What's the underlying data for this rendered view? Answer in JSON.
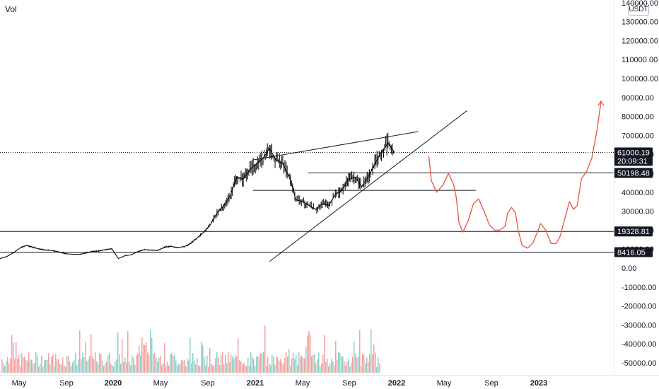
{
  "header": {
    "vol_label": "Vol",
    "currency": "USDT"
  },
  "colors": {
    "candle": "#000000",
    "drawing_line": "#131722",
    "projection": "#e8533f",
    "vol_up": "#8fd0c7",
    "vol_down": "#f3a3a0",
    "price_line": "#131722"
  },
  "chart_data": {
    "type": "candlestick",
    "price_axis": {
      "ticks": [
        "140000.00",
        "130000.00",
        "120000.00",
        "110000.00",
        "100000.00",
        "90000.00",
        "80000.00",
        "70000.00",
        "60000.00",
        "50000.00",
        "40000.00",
        "30000.00",
        "20000.00",
        "10000.00",
        "0.00",
        "-10000.00",
        "-20000.00",
        "-30000.00",
        "-40000.00",
        "-50000.00"
      ],
      "ylim": [
        -55000,
        140000
      ]
    },
    "time_axis": {
      "ticks": [
        {
          "label": "May",
          "bold": false
        },
        {
          "label": "Sep",
          "bold": false
        },
        {
          "label": "2020",
          "bold": true
        },
        {
          "label": "May",
          "bold": false
        },
        {
          "label": "Sep",
          "bold": false
        },
        {
          "label": "2021",
          "bold": true
        },
        {
          "label": "May",
          "bold": false
        },
        {
          "label": "Sep",
          "bold": false
        },
        {
          "label": "2022",
          "bold": true
        },
        {
          "label": "May",
          "bold": false
        },
        {
          "label": "Sep",
          "bold": false
        },
        {
          "label": "2023",
          "bold": true
        }
      ]
    },
    "series": [
      {
        "name": "price",
        "points": [
          [
            0,
            5000
          ],
          [
            0.5,
            6000
          ],
          [
            1,
            8000
          ],
          [
            1.5,
            10500
          ],
          [
            2,
            12000
          ],
          [
            2.5,
            11000
          ],
          [
            3,
            10000
          ],
          [
            3.5,
            9500
          ],
          [
            4,
            9200
          ],
          [
            4.5,
            8500
          ],
          [
            5,
            7500
          ],
          [
            5.5,
            7300
          ],
          [
            6,
            7200
          ],
          [
            6.5,
            7800
          ],
          [
            7,
            8800
          ],
          [
            7.5,
            9000
          ],
          [
            8,
            9700
          ],
          [
            8.5,
            10200
          ],
          [
            9,
            5000
          ],
          [
            9.5,
            6500
          ],
          [
            10,
            7000
          ],
          [
            10.5,
            8800
          ],
          [
            11,
            9700
          ],
          [
            11.5,
            9400
          ],
          [
            12,
            9300
          ],
          [
            12.5,
            11000
          ],
          [
            13,
            11500
          ],
          [
            13.5,
            10700
          ],
          [
            14,
            11300
          ],
          [
            14.5,
            13000
          ],
          [
            15,
            16000
          ],
          [
            15.5,
            19000
          ],
          [
            16,
            23000
          ],
          [
            16.5,
            29000
          ],
          [
            17,
            33000
          ],
          [
            17.5,
            38000
          ],
          [
            18,
            48000
          ],
          [
            18.5,
            47000
          ],
          [
            19,
            52000
          ],
          [
            19.5,
            55000
          ],
          [
            20,
            58000
          ],
          [
            20.5,
            63000
          ],
          [
            21,
            57000
          ],
          [
            21.5,
            55000
          ],
          [
            22,
            48000
          ],
          [
            22.5,
            36000
          ],
          [
            23,
            35000
          ],
          [
            23.5,
            33000
          ],
          [
            24,
            31000
          ],
          [
            24.5,
            34000
          ],
          [
            25,
            33000
          ],
          [
            25.5,
            39000
          ],
          [
            26,
            41000
          ],
          [
            26.5,
            47000
          ],
          [
            27,
            48000
          ],
          [
            27.5,
            43000
          ],
          [
            28,
            48000
          ],
          [
            28.5,
            55000
          ],
          [
            29,
            61000
          ],
          [
            29.5,
            66000
          ],
          [
            30,
            61000
          ]
        ]
      }
    ],
    "volume": {
      "note": "volume histogram (red/green)",
      "ylim": [
        0,
        100
      ]
    },
    "price_labels": [
      {
        "value": "61000.19",
        "sub": "20:09:31",
        "style": "dark"
      },
      {
        "value": "50198.48",
        "style": "dark"
      },
      {
        "value": "19328.81",
        "style": "dark"
      },
      {
        "value": "8416.05",
        "style": "dark"
      }
    ],
    "horizontal_levels": [
      50198.48,
      41000,
      19328.81,
      8416.05
    ],
    "trendlines": [
      {
        "from": [
          19.2,
          57000
        ],
        "to": [
          31.8,
          72000
        ]
      },
      {
        "from": [
          20.5,
          3500
        ],
        "to": [
          35.5,
          83000
        ]
      }
    ],
    "projection_path": [
      [
        32.6,
        59000
      ],
      [
        32.8,
        46000
      ],
      [
        33.2,
        40000
      ],
      [
        33.7,
        44000
      ],
      [
        34.1,
        50000
      ],
      [
        34.5,
        44000
      ],
      [
        34.7,
        37000
      ],
      [
        34.9,
        24000
      ],
      [
        35.2,
        19000
      ],
      [
        35.6,
        25000
      ],
      [
        36.0,
        34000
      ],
      [
        36.4,
        36500
      ],
      [
        36.8,
        30000
      ],
      [
        37.2,
        23000
      ],
      [
        37.6,
        20000
      ],
      [
        38.0,
        20000
      ],
      [
        38.4,
        22000
      ],
      [
        38.6,
        29000
      ],
      [
        38.9,
        32000
      ],
      [
        39.2,
        29000
      ],
      [
        39.4,
        20000
      ],
      [
        39.7,
        12000
      ],
      [
        40.1,
        10500
      ],
      [
        40.5,
        13000
      ],
      [
        40.8,
        18000
      ],
      [
        41.1,
        23500
      ],
      [
        41.5,
        20000
      ],
      [
        41.9,
        13000
      ],
      [
        42.3,
        13000
      ],
      [
        42.6,
        17000
      ],
      [
        42.9,
        25000
      ],
      [
        43.3,
        35000
      ],
      [
        43.6,
        31000
      ],
      [
        43.9,
        33000
      ],
      [
        44.2,
        47000
      ],
      [
        44.6,
        51000
      ],
      [
        45.0,
        58000
      ],
      [
        45.4,
        73000
      ],
      [
        45.7,
        88000
      ]
    ]
  }
}
